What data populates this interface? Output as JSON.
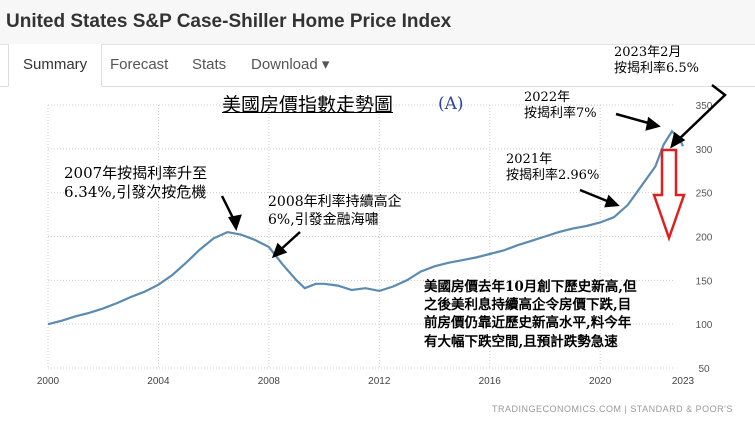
{
  "header": {
    "title": "United States S&P Case-Shiller Home Price Index"
  },
  "tabs": [
    {
      "label": "Summary"
    },
    {
      "label": "Forecast"
    },
    {
      "label": "Stats"
    },
    {
      "label": "Download ▾"
    }
  ],
  "chart_data": {
    "type": "line",
    "title": "美國房價指數走勢圖",
    "title_tag": "(A)",
    "x": [
      2000,
      2000.5,
      2001,
      2001.5,
      2002,
      2002.5,
      2003,
      2003.5,
      2004,
      2004.5,
      2005,
      2005.5,
      2006,
      2006.5,
      2007,
      2007.5,
      2008,
      2008.5,
      2009,
      2009.3,
      2009.7,
      2010,
      2010.5,
      2011,
      2011.5,
      2012,
      2012.5,
      2013,
      2013.5,
      2014,
      2014.5,
      2015,
      2015.5,
      2016,
      2016.5,
      2017,
      2017.5,
      2018,
      2018.5,
      2019,
      2019.5,
      2020,
      2020.5,
      2021,
      2021.5,
      2022,
      2022.3,
      2022.6,
      2022.9,
      2023
    ],
    "values": [
      100,
      104,
      109,
      113,
      118,
      124,
      131,
      137,
      145,
      156,
      170,
      185,
      198,
      205,
      202,
      196,
      188,
      168,
      150,
      141,
      146,
      146,
      144,
      139,
      141,
      138,
      143,
      150,
      160,
      166,
      170,
      173,
      176,
      180,
      184,
      190,
      195,
      200,
      205,
      209,
      212,
      216,
      222,
      236,
      258,
      280,
      305,
      320,
      310,
      303
    ],
    "xticks": [
      "2000",
      "2004",
      "2008",
      "2012",
      "2016",
      "2020",
      "2023"
    ],
    "yticks": [
      "50",
      "100",
      "150",
      "200",
      "250",
      "300",
      "350"
    ],
    "ylim": [
      50,
      350
    ],
    "xlim": [
      2000,
      2023
    ],
    "line_color": "#5b8bb0",
    "source": "TRADINGECONOMICS.COM | STANDARD & POOR'S"
  },
  "annotations": {
    "a2007": [
      "2007年按揭利率升至",
      "6.34%,引發次按危機"
    ],
    "a2008": [
      "2008年利率持續高企",
      "6%,引發金融海嘯"
    ],
    "a2021": [
      "2021年",
      "按揭利率2.96%"
    ],
    "a2022": [
      "2022年",
      "按揭利率7%"
    ],
    "a2023": [
      "2023年2月",
      "按揭利率6.5%"
    ],
    "note": [
      "美國房價去年10月創下歷史新高,但",
      "之後美利息持續高企令房價下跌,目",
      "前房價仍靠近歷史新高水平,料今年",
      "有大幅下跌空間,且預計跌勢急速"
    ]
  }
}
